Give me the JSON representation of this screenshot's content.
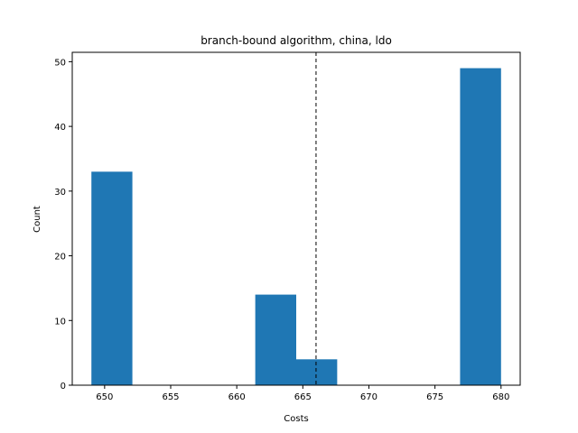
{
  "chart_data": {
    "type": "bar",
    "title": "branch-bound algorithm, china, ldo",
    "xlabel": "Costs",
    "ylabel": "Count",
    "xlim": [
      647.55,
      681.45
    ],
    "ylim": [
      0,
      51.45
    ],
    "x_ticks": [
      650,
      655,
      660,
      665,
      670,
      675,
      680
    ],
    "y_ticks": [
      0,
      10,
      20,
      30,
      40,
      50
    ],
    "bins": [
      {
        "start": 649.0,
        "end": 652.1,
        "count": 33
      },
      {
        "start": 652.1,
        "end": 655.2,
        "count": 0
      },
      {
        "start": 655.2,
        "end": 658.3,
        "count": 0
      },
      {
        "start": 658.3,
        "end": 661.4,
        "count": 0
      },
      {
        "start": 661.4,
        "end": 664.5,
        "count": 14
      },
      {
        "start": 664.5,
        "end": 667.6,
        "count": 4
      },
      {
        "start": 667.6,
        "end": 670.7,
        "count": 0
      },
      {
        "start": 670.7,
        "end": 673.8,
        "count": 0
      },
      {
        "start": 673.8,
        "end": 676.9,
        "count": 0
      },
      {
        "start": 676.9,
        "end": 680.0,
        "count": 49
      }
    ],
    "reference_line": {
      "x": 666.0,
      "style": "dashed"
    },
    "bar_color": "#1f77b4",
    "grid": false
  }
}
